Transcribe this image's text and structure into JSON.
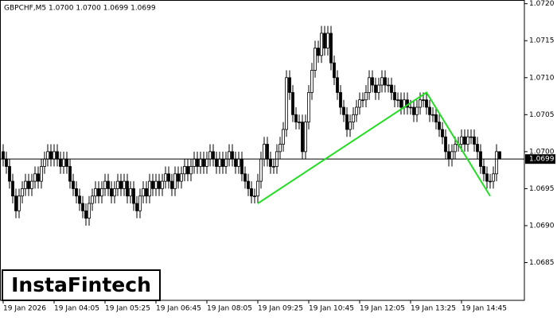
{
  "chart_data": {
    "type": "candlestick",
    "title": "GBPCHF,M5  1.0700 1.0700 1.0699 1.0699",
    "logo": "InstaFintech",
    "up_color": "#ffffff",
    "down_color": "#000000",
    "edge_color": "#000000",
    "ylim": [
      1.06799,
      1.07205
    ],
    "yticks": [
      {
        "value": 1.072,
        "label": "1.0720"
      },
      1.0715,
      {
        "value": 1.071,
        "label": "1.0710"
      },
      1.0705,
      {
        "value": 1.07,
        "label": "1.0700"
      },
      1.0695,
      {
        "value": 1.069,
        "label": "1.0690"
      },
      1.0685
    ],
    "x_labels": [
      {
        "index": 0,
        "label": "19 Jan 2026"
      },
      {
        "index": 16,
        "label": "19 Jan 04:05"
      },
      {
        "index": 32,
        "label": "19 Jan 05:25"
      },
      {
        "index": 48,
        "label": "19 Jan 06:45"
      },
      {
        "index": 64,
        "label": "19 Jan 08:05"
      },
      {
        "index": 80,
        "label": "19 Jan 09:25"
      },
      {
        "index": 96,
        "label": "19 Jan 10:45"
      },
      {
        "index": 112,
        "label": "19 Jan 12:05"
      },
      {
        "index": 128,
        "label": "19 Jan 13:25"
      },
      {
        "index": 144,
        "label": "19 Jan 14:45"
      }
    ],
    "price_line": {
      "value": 1.0699,
      "label": "1.0699"
    },
    "pattern": {
      "color": "#22dd22",
      "points": [
        [
          80,
          1.0693
        ],
        [
          133,
          1.0708
        ],
        [
          153,
          1.0694
        ]
      ]
    },
    "candles": [
      [
        1.07,
        1.0701,
        1.0698,
        1.0699
      ],
      [
        1.0699,
        1.07,
        1.0697,
        1.0698
      ],
      [
        1.0698,
        1.0699,
        1.0695,
        1.0696
      ],
      [
        1.0696,
        1.0697,
        1.0693,
        1.0694
      ],
      [
        1.0694,
        1.0695,
        1.0691,
        1.0692
      ],
      [
        1.0692,
        1.0695,
        1.0691,
        1.0694
      ],
      [
        1.0694,
        1.0696,
        1.0693,
        1.0695
      ],
      [
        1.0695,
        1.0697,
        1.0694,
        1.0696
      ],
      [
        1.0696,
        1.0697,
        1.0694,
        1.0695
      ],
      [
        1.0695,
        1.0697,
        1.0694,
        1.0696
      ],
      [
        1.0696,
        1.0698,
        1.0695,
        1.0697
      ],
      [
        1.0697,
        1.0698,
        1.0695,
        1.0696
      ],
      [
        1.0696,
        1.0699,
        1.0695,
        1.0698
      ],
      [
        1.0698,
        1.07,
        1.0697,
        1.0699
      ],
      [
        1.0699,
        1.0701,
        1.0698,
        1.07
      ],
      [
        1.07,
        1.0701,
        1.0698,
        1.0699
      ],
      [
        1.0699,
        1.0701,
        1.0698,
        1.07
      ],
      [
        1.07,
        1.0701,
        1.0698,
        1.0699
      ],
      [
        1.0699,
        1.07,
        1.0697,
        1.0698
      ],
      [
        1.0698,
        1.07,
        1.0697,
        1.0699
      ],
      [
        1.0699,
        1.07,
        1.0697,
        1.0698
      ],
      [
        1.0698,
        1.0699,
        1.0695,
        1.0696
      ],
      [
        1.0696,
        1.0697,
        1.0694,
        1.0695
      ],
      [
        1.0695,
        1.0696,
        1.0693,
        1.0694
      ],
      [
        1.0694,
        1.0695,
        1.0692,
        1.0693
      ],
      [
        1.0693,
        1.0694,
        1.0691,
        1.0692
      ],
      [
        1.0692,
        1.0693,
        1.069,
        1.0691
      ],
      [
        1.0691,
        1.0694,
        1.069,
        1.0693
      ],
      [
        1.0693,
        1.0695,
        1.0692,
        1.0694
      ],
      [
        1.0694,
        1.0696,
        1.0693,
        1.0695
      ],
      [
        1.0695,
        1.0696,
        1.0693,
        1.0694
      ],
      [
        1.0694,
        1.0696,
        1.0693,
        1.0695
      ],
      [
        1.0695,
        1.0697,
        1.0694,
        1.0696
      ],
      [
        1.0696,
        1.0697,
        1.0694,
        1.0695
      ],
      [
        1.0695,
        1.0696,
        1.0693,
        1.0694
      ],
      [
        1.0694,
        1.0696,
        1.0693,
        1.0695
      ],
      [
        1.0695,
        1.0697,
        1.0694,
        1.0696
      ],
      [
        1.0696,
        1.0697,
        1.0694,
        1.0695
      ],
      [
        1.0695,
        1.0697,
        1.0694,
        1.0696
      ],
      [
        1.0696,
        1.0697,
        1.0693,
        1.0694
      ],
      [
        1.0694,
        1.0696,
        1.0693,
        1.0695
      ],
      [
        1.0695,
        1.0696,
        1.0692,
        1.0693
      ],
      [
        1.0693,
        1.0694,
        1.0691,
        1.0692
      ],
      [
        1.0692,
        1.0695,
        1.0691,
        1.0694
      ],
      [
        1.0694,
        1.0696,
        1.0693,
        1.0695
      ],
      [
        1.0695,
        1.0696,
        1.0693,
        1.0694
      ],
      [
        1.0694,
        1.0697,
        1.0693,
        1.0696
      ],
      [
        1.0696,
        1.0697,
        1.0694,
        1.0695
      ],
      [
        1.0695,
        1.0697,
        1.0694,
        1.0696
      ],
      [
        1.0696,
        1.0697,
        1.0694,
        1.0695
      ],
      [
        1.0695,
        1.0697,
        1.0694,
        1.0696
      ],
      [
        1.0696,
        1.0698,
        1.0695,
        1.0697
      ],
      [
        1.0697,
        1.0698,
        1.0695,
        1.0696
      ],
      [
        1.0696,
        1.0697,
        1.0694,
        1.0695
      ],
      [
        1.0695,
        1.0698,
        1.0694,
        1.0697
      ],
      [
        1.0697,
        1.0698,
        1.0695,
        1.0696
      ],
      [
        1.0696,
        1.0698,
        1.0695,
        1.0697
      ],
      [
        1.0697,
        1.0699,
        1.0696,
        1.0698
      ],
      [
        1.0698,
        1.0699,
        1.0696,
        1.0697
      ],
      [
        1.0697,
        1.0699,
        1.0696,
        1.0698
      ],
      [
        1.0698,
        1.07,
        1.0697,
        1.0699
      ],
      [
        1.0699,
        1.07,
        1.0697,
        1.0698
      ],
      [
        1.0698,
        1.07,
        1.0697,
        1.0699
      ],
      [
        1.0699,
        1.07,
        1.0697,
        1.0698
      ],
      [
        1.0698,
        1.07,
        1.0697,
        1.0699
      ],
      [
        1.0699,
        1.0701,
        1.0698,
        1.07
      ],
      [
        1.07,
        1.0701,
        1.0698,
        1.0699
      ],
      [
        1.0699,
        1.07,
        1.0697,
        1.0698
      ],
      [
        1.0698,
        1.07,
        1.0697,
        1.0699
      ],
      [
        1.0699,
        1.07,
        1.0697,
        1.0698
      ],
      [
        1.0698,
        1.07,
        1.0697,
        1.0699
      ],
      [
        1.0699,
        1.0701,
        1.0698,
        1.07
      ],
      [
        1.07,
        1.0701,
        1.0698,
        1.0699
      ],
      [
        1.0699,
        1.07,
        1.0697,
        1.0698
      ],
      [
        1.0698,
        1.07,
        1.0697,
        1.0699
      ],
      [
        1.0699,
        1.07,
        1.0696,
        1.0697
      ],
      [
        1.0697,
        1.0698,
        1.0695,
        1.0696
      ],
      [
        1.0696,
        1.0697,
        1.0694,
        1.0695
      ],
      [
        1.0695,
        1.0696,
        1.0693,
        1.0694
      ],
      [
        1.0694,
        1.0695,
        1.0693,
        1.0694
      ],
      [
        1.0694,
        1.0697,
        1.0693,
        1.0696
      ],
      [
        1.0696,
        1.07,
        1.0695,
        1.0699
      ],
      [
        1.0699,
        1.0702,
        1.0698,
        1.0701
      ],
      [
        1.0701,
        1.0702,
        1.0698,
        1.0699
      ],
      [
        1.0699,
        1.07,
        1.0697,
        1.0698
      ],
      [
        1.0698,
        1.0699,
        1.0697,
        1.0698
      ],
      [
        1.0698,
        1.0701,
        1.0697,
        1.07
      ],
      [
        1.07,
        1.0702,
        1.0699,
        1.0701
      ],
      [
        1.0701,
        1.0704,
        1.07,
        1.0703
      ],
      [
        1.0703,
        1.0711,
        1.0702,
        1.071
      ],
      [
        1.071,
        1.0711,
        1.0707,
        1.0708
      ],
      [
        1.0708,
        1.0709,
        1.0704,
        1.0705
      ],
      [
        1.0705,
        1.0706,
        1.0703,
        1.0704
      ],
      [
        1.0704,
        1.0705,
        1.0703,
        1.0704
      ],
      [
        1.0704,
        1.0705,
        1.0699,
        1.07
      ],
      [
        1.07,
        1.0705,
        1.0699,
        1.0704
      ],
      [
        1.0704,
        1.0709,
        1.0703,
        1.0708
      ],
      [
        1.0708,
        1.0712,
        1.0707,
        1.0711
      ],
      [
        1.0711,
        1.0715,
        1.071,
        1.0714
      ],
      [
        1.0714,
        1.0715,
        1.0712,
        1.0713
      ],
      [
        1.0713,
        1.0717,
        1.0712,
        1.0716
      ],
      [
        1.0716,
        1.0717,
        1.0713,
        1.0714
      ],
      [
        1.0714,
        1.0717,
        1.0713,
        1.0716
      ],
      [
        1.0716,
        1.0717,
        1.0711,
        1.0712
      ],
      [
        1.0712,
        1.0713,
        1.0709,
        1.071
      ],
      [
        1.071,
        1.0711,
        1.0707,
        1.0708
      ],
      [
        1.0708,
        1.0709,
        1.0705,
        1.0706
      ],
      [
        1.0706,
        1.0707,
        1.0704,
        1.0705
      ],
      [
        1.0705,
        1.0706,
        1.0702,
        1.0703
      ],
      [
        1.0703,
        1.0705,
        1.0702,
        1.0704
      ],
      [
        1.0704,
        1.0706,
        1.0703,
        1.0705
      ],
      [
        1.0705,
        1.0707,
        1.0704,
        1.0706
      ],
      [
        1.0706,
        1.0708,
        1.0705,
        1.0707
      ],
      [
        1.0707,
        1.0708,
        1.0706,
        1.0707
      ],
      [
        1.0707,
        1.0709,
        1.0706,
        1.0708
      ],
      [
        1.0708,
        1.0711,
        1.0707,
        1.071
      ],
      [
        1.071,
        1.0711,
        1.0708,
        1.0709
      ],
      [
        1.0709,
        1.071,
        1.0707,
        1.0708
      ],
      [
        1.0708,
        1.071,
        1.0707,
        1.0709
      ],
      [
        1.0709,
        1.0711,
        1.0708,
        1.071
      ],
      [
        1.071,
        1.0711,
        1.0708,
        1.0709
      ],
      [
        1.0709,
        1.071,
        1.0708,
        1.0709
      ],
      [
        1.0709,
        1.071,
        1.0707,
        1.0708
      ],
      [
        1.0708,
        1.0709,
        1.0706,
        1.0707
      ],
      [
        1.0707,
        1.0708,
        1.0706,
        1.0707
      ],
      [
        1.0707,
        1.0708,
        1.0705,
        1.0706
      ],
      [
        1.0706,
        1.0708,
        1.0705,
        1.0707
      ],
      [
        1.0707,
        1.0708,
        1.0705,
        1.0706
      ],
      [
        1.0706,
        1.0707,
        1.0705,
        1.0706
      ],
      [
        1.0706,
        1.0707,
        1.0704,
        1.0705
      ],
      [
        1.0705,
        1.0707,
        1.0704,
        1.0706
      ],
      [
        1.0706,
        1.0708,
        1.0705,
        1.0707
      ],
      [
        1.0707,
        1.0708,
        1.0706,
        1.0707
      ],
      [
        1.0707,
        1.0708,
        1.0705,
        1.0706
      ],
      [
        1.0706,
        1.0707,
        1.0704,
        1.0705
      ],
      [
        1.0705,
        1.0706,
        1.0704,
        1.0705
      ],
      [
        1.0705,
        1.0706,
        1.0703,
        1.0704
      ],
      [
        1.0704,
        1.0705,
        1.0702,
        1.0703
      ],
      [
        1.0703,
        1.0704,
        1.0701,
        1.0702
      ],
      [
        1.0702,
        1.0703,
        1.0699,
        1.07
      ],
      [
        1.07,
        1.0701,
        1.0698,
        1.0699
      ],
      [
        1.0699,
        1.0701,
        1.0698,
        1.07
      ],
      [
        1.07,
        1.0702,
        1.0699,
        1.0701
      ],
      [
        1.0701,
        1.0702,
        1.07,
        1.0701
      ],
      [
        1.0701,
        1.0703,
        1.07,
        1.0702
      ],
      [
        1.0702,
        1.0703,
        1.07,
        1.0701
      ],
      [
        1.0701,
        1.0703,
        1.07,
        1.0702
      ],
      [
        1.0702,
        1.0703,
        1.0701,
        1.0702
      ],
      [
        1.0702,
        1.0703,
        1.07,
        1.0701
      ],
      [
        1.0701,
        1.0702,
        1.0699,
        1.07
      ],
      [
        1.07,
        1.0701,
        1.0697,
        1.0698
      ],
      [
        1.0698,
        1.0699,
        1.0696,
        1.0697
      ],
      [
        1.0697,
        1.0698,
        1.0695,
        1.0696
      ],
      [
        1.0696,
        1.0697,
        1.0695,
        1.0696
      ],
      [
        1.0696,
        1.0698,
        1.0695,
        1.0697
      ],
      [
        1.0697,
        1.0701,
        1.0696,
        1.07
      ],
      [
        1.07,
        1.07,
        1.0699,
        1.0699
      ]
    ]
  }
}
